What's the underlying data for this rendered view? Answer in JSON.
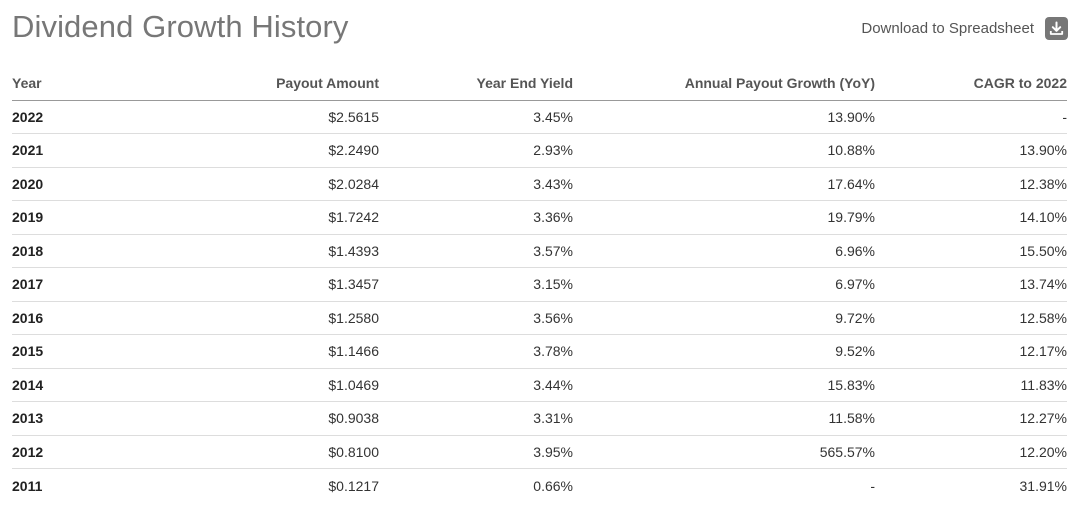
{
  "header": {
    "title": "Dividend Growth History",
    "download_label": "Download to Spreadsheet",
    "download_icon": "download-icon"
  },
  "table": {
    "columns": [
      "Year",
      "Payout Amount",
      "Year End Yield",
      "Annual Payout Growth (YoY)",
      "CAGR to 2022"
    ],
    "rows": [
      [
        "2022",
        "$2.5615",
        "3.45%",
        "13.90%",
        "-"
      ],
      [
        "2021",
        "$2.2490",
        "2.93%",
        "10.88%",
        "13.90%"
      ],
      [
        "2020",
        "$2.0284",
        "3.43%",
        "17.64%",
        "12.38%"
      ],
      [
        "2019",
        "$1.7242",
        "3.36%",
        "19.79%",
        "14.10%"
      ],
      [
        "2018",
        "$1.4393",
        "3.57%",
        "6.96%",
        "15.50%"
      ],
      [
        "2017",
        "$1.3457",
        "3.15%",
        "6.97%",
        "13.74%"
      ],
      [
        "2016",
        "$1.2580",
        "3.56%",
        "9.72%",
        "12.58%"
      ],
      [
        "2015",
        "$1.1466",
        "3.78%",
        "9.52%",
        "12.17%"
      ],
      [
        "2014",
        "$1.0469",
        "3.44%",
        "15.83%",
        "11.83%"
      ],
      [
        "2013",
        "$0.9038",
        "3.31%",
        "11.58%",
        "12.27%"
      ],
      [
        "2012",
        "$0.8100",
        "3.95%",
        "565.57%",
        "12.20%"
      ],
      [
        "2011",
        "$0.1217",
        "0.66%",
        "-",
        "31.91%"
      ]
    ]
  },
  "colors": {
    "title": "#777777",
    "icon_bg": "#777777",
    "header_rule": "#999999",
    "row_rule": "#dddddd"
  }
}
